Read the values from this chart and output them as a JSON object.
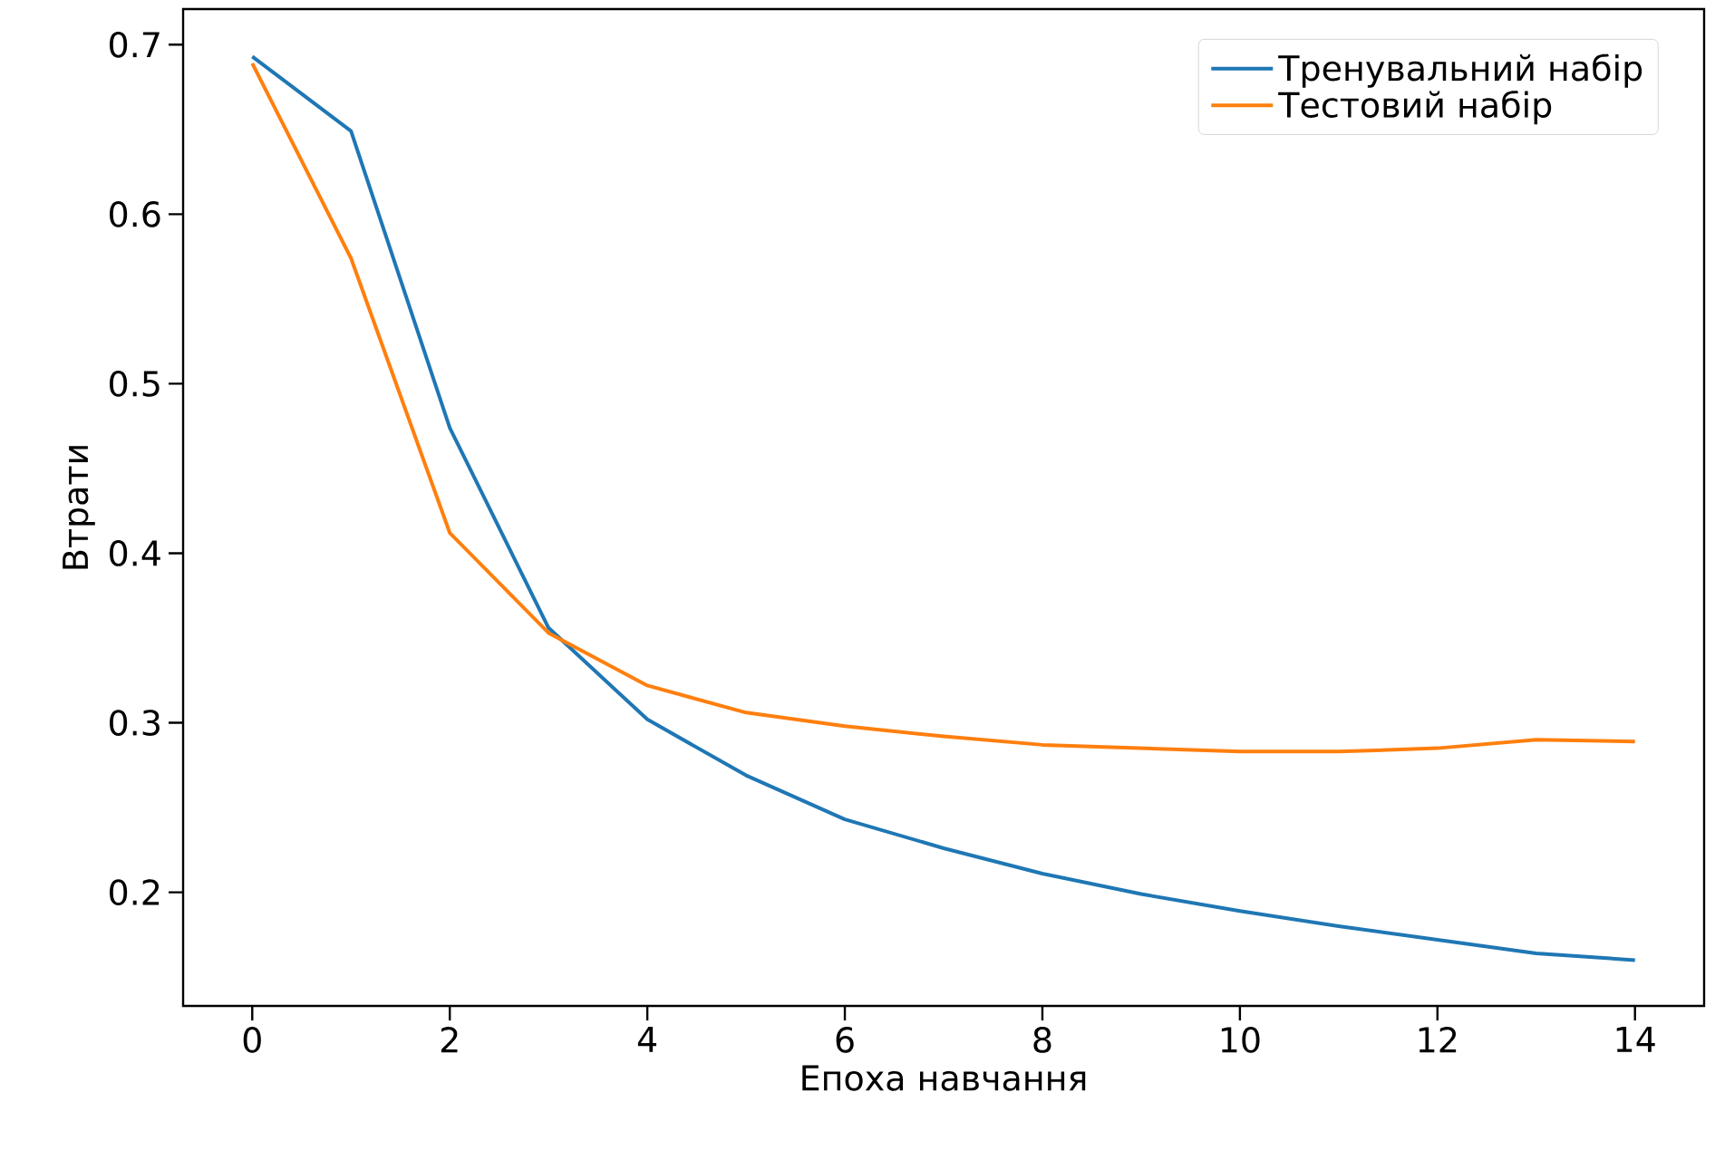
{
  "chart_data": {
    "type": "line",
    "xlabel": "Епоха навчання",
    "ylabel": "Втрати",
    "x": [
      0,
      1,
      2,
      3,
      4,
      5,
      6,
      7,
      8,
      9,
      10,
      11,
      12,
      13,
      14
    ],
    "series": [
      {
        "name": "Тренувальний набір",
        "color": "#1f77b4",
        "values": [
          0.693,
          0.649,
          0.474,
          0.356,
          0.302,
          0.269,
          0.243,
          0.226,
          0.211,
          0.199,
          0.189,
          0.18,
          0.172,
          0.164,
          0.16
        ]
      },
      {
        "name": "Тестовий набір",
        "color": "#ff7f0e",
        "values": [
          0.689,
          0.574,
          0.412,
          0.353,
          0.322,
          0.306,
          0.298,
          0.292,
          0.287,
          0.285,
          0.283,
          0.283,
          0.285,
          0.29,
          0.289
        ]
      }
    ],
    "xlim": [
      -0.7,
      14.7
    ],
    "ylim": [
      0.133,
      0.721
    ],
    "xticks": [
      0,
      2,
      4,
      6,
      8,
      10,
      12,
      14
    ],
    "yticks": [
      0.2,
      0.3,
      0.4,
      0.5,
      0.6,
      0.7
    ],
    "grid": false,
    "legend": "top right",
    "marker": "none",
    "line_style": "solid"
  }
}
